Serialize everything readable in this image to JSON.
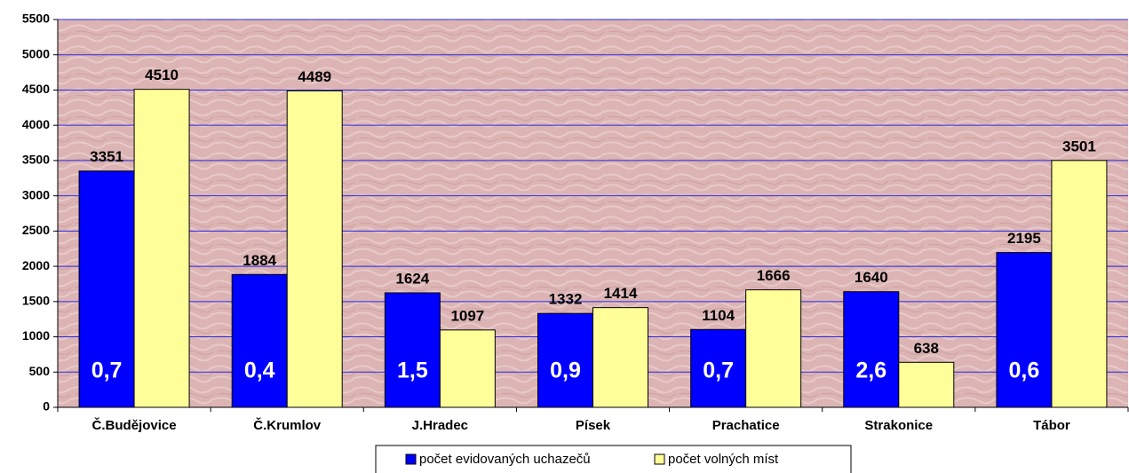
{
  "chart_data": {
    "type": "bar",
    "categories": [
      "Č.Budějovice",
      "Č.Krumlov",
      "J.Hradec",
      "Písek",
      "Prachatice",
      "Strakonice",
      "Tábor"
    ],
    "series": [
      {
        "name": "počet evidovaných uchazečů",
        "color": "#0000ff",
        "values": [
          3351,
          1884,
          1624,
          1332,
          1104,
          1640,
          2195
        ]
      },
      {
        "name": "počet volných míst",
        "color": "#ffff99",
        "values": [
          4510,
          4489,
          1097,
          1414,
          1666,
          638,
          3501
        ]
      }
    ],
    "annotations": [
      "0,7",
      "0,4",
      "1,5",
      "0,9",
      "0,7",
      "2,6",
      "0,6"
    ],
    "ylim": [
      0,
      5500
    ],
    "yticks": [
      0,
      500,
      1000,
      1500,
      2000,
      2500,
      3000,
      3500,
      4000,
      4500,
      5000,
      5500
    ],
    "grid": true,
    "legend": "bottom"
  }
}
